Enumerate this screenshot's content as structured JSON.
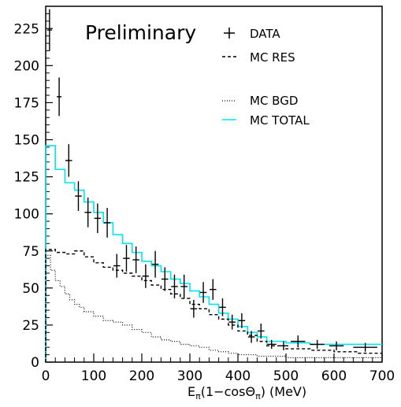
{
  "chart_data": {
    "type": "line",
    "annotation": "Preliminary",
    "xlabel_parts": {
      "e": "E",
      "sub1": "π",
      "mid": "(1−cosΘ",
      "sub2": "π",
      "end": ") (MeV)"
    },
    "xlim": [
      0,
      700
    ],
    "ylim": [
      0,
      240
    ],
    "x_ticks": [
      0,
      100,
      200,
      300,
      400,
      500,
      600,
      700
    ],
    "y_ticks": [
      0,
      25,
      50,
      75,
      100,
      125,
      150,
      175,
      200,
      225
    ],
    "legend_placement": "top-right",
    "legend": [
      {
        "key": "data",
        "label": "DATA",
        "style": "cross"
      },
      {
        "key": "mc_res",
        "label": "MC RES",
        "style": "dashed"
      },
      {
        "key": "mc_bgd",
        "label": "MC BGD",
        "style": "dotted"
      },
      {
        "key": "mc_total",
        "label": "MC TOTAL",
        "style": "solid-cyan"
      }
    ],
    "series": [
      {
        "name": "DATA",
        "kind": "points",
        "points": [
          {
            "x": 8,
            "y": 224,
            "xerr": 5,
            "yerr": 14
          },
          {
            "x": 28,
            "y": 179,
            "xerr": 5,
            "yerr": 13
          },
          {
            "x": 48,
            "y": 136,
            "xerr": 7,
            "yerr": 11
          },
          {
            "x": 68,
            "y": 112,
            "xerr": 7,
            "yerr": 10
          },
          {
            "x": 88,
            "y": 101,
            "xerr": 7,
            "yerr": 10
          },
          {
            "x": 108,
            "y": 97,
            "xerr": 7,
            "yerr": 10
          },
          {
            "x": 128,
            "y": 94,
            "xerr": 7,
            "yerr": 10
          },
          {
            "x": 148,
            "y": 65,
            "xerr": 7,
            "yerr": 8
          },
          {
            "x": 168,
            "y": 70,
            "xerr": 7,
            "yerr": 9
          },
          {
            "x": 188,
            "y": 69,
            "xerr": 7,
            "yerr": 9
          },
          {
            "x": 208,
            "y": 58,
            "xerr": 7,
            "yerr": 8
          },
          {
            "x": 228,
            "y": 66,
            "xerr": 7,
            "yerr": 9
          },
          {
            "x": 248,
            "y": 56,
            "xerr": 7,
            "yerr": 8
          },
          {
            "x": 268,
            "y": 51,
            "xerr": 7,
            "yerr": 8
          },
          {
            "x": 288,
            "y": 51,
            "xerr": 7,
            "yerr": 8
          },
          {
            "x": 308,
            "y": 36,
            "xerr": 7,
            "yerr": 6
          },
          {
            "x": 328,
            "y": 47,
            "xerr": 7,
            "yerr": 7
          },
          {
            "x": 348,
            "y": 49,
            "xerr": 7,
            "yerr": 7
          },
          {
            "x": 368,
            "y": 37,
            "xerr": 7,
            "yerr": 6
          },
          {
            "x": 388,
            "y": 27,
            "xerr": 7,
            "yerr": 5
          },
          {
            "x": 408,
            "y": 28,
            "xerr": 7,
            "yerr": 5
          },
          {
            "x": 428,
            "y": 17,
            "xerr": 7,
            "yerr": 4
          },
          {
            "x": 448,
            "y": 21,
            "xerr": 7,
            "yerr": 5
          },
          {
            "x": 470,
            "y": 12,
            "xerr": 10,
            "yerr": 3
          },
          {
            "x": 495,
            "y": 11,
            "xerr": 10,
            "yerr": 3
          },
          {
            "x": 525,
            "y": 14,
            "xerr": 15,
            "yerr": 4
          },
          {
            "x": 565,
            "y": 12,
            "xerr": 15,
            "yerr": 3
          },
          {
            "x": 605,
            "y": 11,
            "xerr": 15,
            "yerr": 3
          },
          {
            "x": 665,
            "y": 10,
            "xerr": 25,
            "yerr": 3
          }
        ]
      },
      {
        "name": "MC TOTAL",
        "kind": "step",
        "color": "#00e5ee",
        "x": [
          0,
          20,
          40,
          60,
          80,
          100,
          120,
          140,
          160,
          180,
          200,
          220,
          240,
          260,
          280,
          300,
          320,
          340,
          360,
          380,
          400,
          420,
          440,
          460,
          500,
          550,
          600,
          650,
          700
        ],
        "y": [
          146,
          130,
          121,
          116,
          108,
          101,
          94,
          86,
          80,
          74,
          68,
          65,
          61,
          56,
          53,
          48,
          44,
          39,
          33,
          29,
          24,
          20,
          17,
          14,
          13,
          12,
          12,
          12,
          12
        ]
      },
      {
        "name": "MC RES",
        "kind": "step",
        "color": "#000000",
        "x": [
          0,
          20,
          40,
          60,
          80,
          100,
          120,
          140,
          160,
          180,
          200,
          220,
          240,
          260,
          280,
          300,
          320,
          340,
          360,
          380,
          400,
          420,
          440,
          460,
          500,
          550,
          600,
          650,
          700
        ],
        "y": [
          76,
          74,
          73,
          75,
          71,
          67,
          64,
          62,
          60,
          58,
          55,
          52,
          49,
          46,
          43,
          39,
          36,
          32,
          29,
          25,
          21,
          18,
          14,
          11,
          9,
          8,
          7,
          6,
          6
        ]
      },
      {
        "name": "MC BGD",
        "kind": "step",
        "color": "#000000",
        "x": [
          0,
          10,
          20,
          30,
          40,
          50,
          60,
          70,
          80,
          100,
          120,
          140,
          160,
          180,
          200,
          220,
          240,
          260,
          280,
          300,
          320,
          340,
          360,
          380,
          400,
          420,
          440,
          460,
          500,
          550,
          600,
          650,
          700
        ],
        "y": [
          72,
          62,
          55,
          51,
          46,
          42,
          39,
          37,
          34,
          31,
          28,
          27,
          25,
          22,
          20,
          17,
          15,
          14,
          12,
          11,
          10,
          8,
          7,
          6,
          5,
          5,
          4,
          4,
          3,
          3,
          3,
          3,
          3
        ]
      }
    ]
  }
}
